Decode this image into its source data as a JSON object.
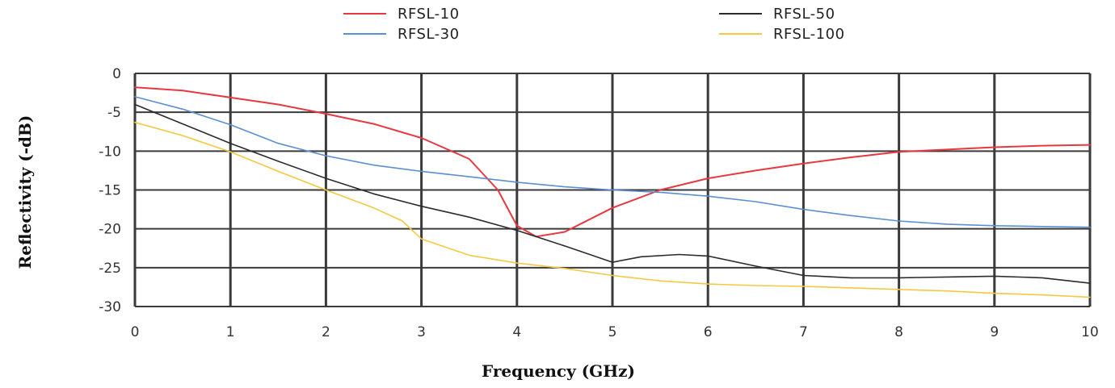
{
  "chart_data": {
    "type": "line",
    "title": "",
    "xlabel": "Frequency (GHz)",
    "ylabel": "Reflectivity (-dB)",
    "xlim": [
      0,
      10
    ],
    "ylim": [
      -30,
      0
    ],
    "x_ticks": [
      "0",
      "1",
      "2",
      "3",
      "4",
      "5",
      "6",
      "7",
      "8",
      "9",
      "10"
    ],
    "y_ticks": [
      "0",
      "-5",
      "-10",
      "-15",
      "-20",
      "-25",
      "-30"
    ],
    "grid": true,
    "legend_position": "top",
    "series": [
      {
        "name": "RFSL-10",
        "color": "#e8383f",
        "points": [
          [
            0,
            -1.8
          ],
          [
            0.5,
            -2.2
          ],
          [
            1,
            -3.1
          ],
          [
            1.5,
            -4.0
          ],
          [
            2,
            -5.2
          ],
          [
            2.5,
            -6.5
          ],
          [
            3,
            -8.3
          ],
          [
            3.5,
            -11.0
          ],
          [
            3.8,
            -15.0
          ],
          [
            4.0,
            -19.6
          ],
          [
            4.2,
            -21.0
          ],
          [
            4.5,
            -20.4
          ],
          [
            5,
            -17.3
          ],
          [
            5.5,
            -15.0
          ],
          [
            6,
            -13.5
          ],
          [
            6.5,
            -12.5
          ],
          [
            7,
            -11.6
          ],
          [
            7.5,
            -10.8
          ],
          [
            8,
            -10.1
          ],
          [
            8.5,
            -9.8
          ],
          [
            9,
            -9.5
          ],
          [
            9.5,
            -9.3
          ],
          [
            10,
            -9.2
          ]
        ]
      },
      {
        "name": "RFSL-30",
        "color": "#5b8fd1",
        "points": [
          [
            0,
            -3.0
          ],
          [
            0.5,
            -4.6
          ],
          [
            1,
            -6.6
          ],
          [
            1.5,
            -9.0
          ],
          [
            2,
            -10.6
          ],
          [
            2.5,
            -11.8
          ],
          [
            3,
            -12.6
          ],
          [
            3.5,
            -13.3
          ],
          [
            4,
            -14.0
          ],
          [
            4.5,
            -14.6
          ],
          [
            5,
            -15.0
          ],
          [
            5.5,
            -15.3
          ],
          [
            6,
            -15.8
          ],
          [
            6.5,
            -16.5
          ],
          [
            7,
            -17.5
          ],
          [
            7.5,
            -18.3
          ],
          [
            8,
            -19.0
          ],
          [
            8.5,
            -19.4
          ],
          [
            9,
            -19.6
          ],
          [
            9.5,
            -19.7
          ],
          [
            10,
            -19.8
          ]
        ]
      },
      {
        "name": "RFSL-50",
        "color": "#2b2b2b",
        "points": [
          [
            0,
            -4.0
          ],
          [
            0.5,
            -6.5
          ],
          [
            1,
            -9.0
          ],
          [
            1.5,
            -11.3
          ],
          [
            2,
            -13.5
          ],
          [
            2.5,
            -15.5
          ],
          [
            3,
            -17.1
          ],
          [
            3.5,
            -18.5
          ],
          [
            4,
            -20.2
          ],
          [
            4.5,
            -22.2
          ],
          [
            5,
            -24.3
          ],
          [
            5.3,
            -23.6
          ],
          [
            5.7,
            -23.3
          ],
          [
            6,
            -23.5
          ],
          [
            6.5,
            -24.8
          ],
          [
            7,
            -26.0
          ],
          [
            7.5,
            -26.3
          ],
          [
            8,
            -26.3
          ],
          [
            8.5,
            -26.2
          ],
          [
            9,
            -26.1
          ],
          [
            9.5,
            -26.3
          ],
          [
            10,
            -27.0
          ]
        ]
      },
      {
        "name": "RFSL-100",
        "color": "#f5c842",
        "points": [
          [
            0,
            -6.3
          ],
          [
            0.5,
            -8.0
          ],
          [
            1,
            -10.1
          ],
          [
            1.5,
            -12.6
          ],
          [
            2,
            -15.0
          ],
          [
            2.5,
            -17.3
          ],
          [
            2.8,
            -19.0
          ],
          [
            3,
            -21.3
          ],
          [
            3.5,
            -23.4
          ],
          [
            4,
            -24.4
          ],
          [
            4.5,
            -25.1
          ],
          [
            5,
            -26.0
          ],
          [
            5.5,
            -26.7
          ],
          [
            6,
            -27.1
          ],
          [
            6.5,
            -27.3
          ],
          [
            7,
            -27.4
          ],
          [
            7.5,
            -27.6
          ],
          [
            8,
            -27.8
          ],
          [
            8.5,
            -28.0
          ],
          [
            9,
            -28.3
          ],
          [
            9.5,
            -28.5
          ],
          [
            10,
            -28.8
          ]
        ]
      }
    ]
  }
}
